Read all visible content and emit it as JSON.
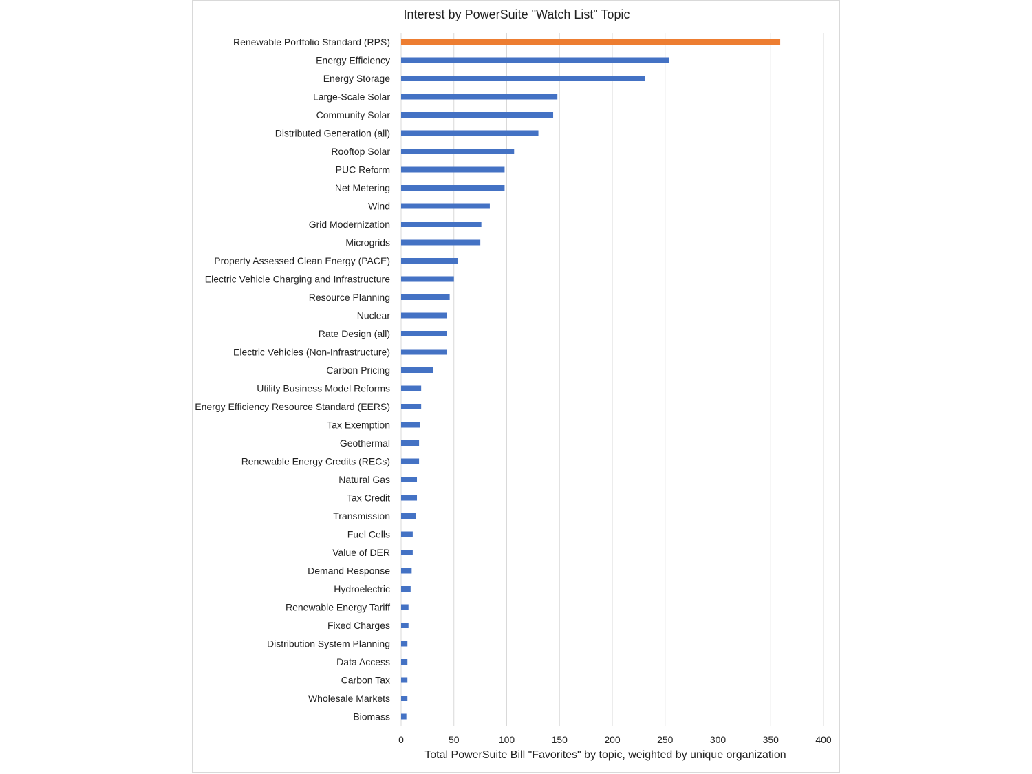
{
  "chart_data": {
    "type": "bar",
    "orientation": "horizontal",
    "title": "Interest by PowerSuite \"Watch List\" Topic",
    "xlabel": "Total PowerSuite Bill \"Favorites\" by topic, weighted by unique organization",
    "ylabel": "",
    "xlim": [
      0,
      400
    ],
    "xticks": [
      0,
      50,
      100,
      150,
      200,
      250,
      300,
      350,
      400
    ],
    "grid": true,
    "categories": [
      "Renewable Portfolio Standard (RPS)",
      "Energy Efficiency",
      "Energy Storage",
      "Large-Scale Solar",
      "Community Solar",
      "Distributed Generation (all)",
      "Rooftop Solar",
      "PUC Reform",
      "Net Metering",
      "Wind",
      "Grid Modernization",
      "Microgrids",
      "Property Assessed Clean Energy (PACE)",
      "Electric Vehicle Charging and Infrastructure",
      "Resource Planning",
      "Nuclear",
      "Rate Design (all)",
      "Electric Vehicles (Non-Infrastructure)",
      "Carbon Pricing",
      "Utility Business Model Reforms",
      "Energy Efficiency Resource Standard (EERS)",
      "Tax Exemption",
      "Geothermal",
      "Renewable Energy Credits (RECs)",
      "Natural Gas",
      "Tax Credit",
      "Transmission",
      "Fuel Cells",
      "Value of DER",
      "Demand Response",
      "Hydroelectric",
      "Renewable Energy Tariff",
      "Fixed Charges",
      "Distribution System Planning",
      "Data Access",
      "Carbon Tax",
      "Wholesale Markets",
      "Biomass"
    ],
    "values": [
      359,
      254,
      231,
      148,
      144,
      130,
      107,
      98,
      98,
      84,
      76,
      75,
      54,
      50,
      46,
      43,
      43,
      43,
      30,
      19,
      19,
      18,
      17,
      17,
      15,
      15,
      14,
      11,
      11,
      10,
      9,
      7,
      7,
      6,
      6,
      6,
      6,
      5
    ],
    "colors": {
      "default": "#4472C4",
      "highlight": "#ED7D31",
      "highlight_index": 0,
      "grid": "#d9d9d9"
    }
  }
}
